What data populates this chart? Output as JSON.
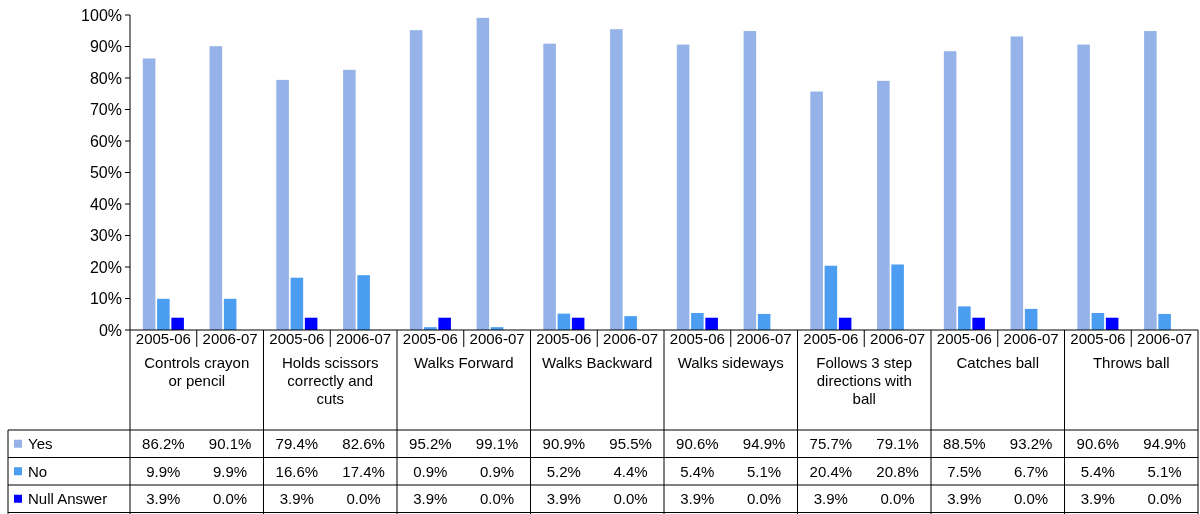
{
  "chart_data": {
    "type": "bar",
    "categories": [
      "2005-06",
      "2006-07",
      "2005-06",
      "2006-07",
      "2005-06",
      "2006-07",
      "2005-06",
      "2006-07",
      "2005-06",
      "2006-07",
      "2005-06",
      "2006-07",
      "2005-06",
      "2006-07",
      "2005-06",
      "2006-07"
    ],
    "annotations": [
      "Controls crayon or pencil",
      "Holds scissors correctly and cuts",
      "Walks Forward",
      "Walks Backward",
      "Walks sideways",
      "Follows 3 step directions with ball",
      "Catches ball",
      "Throws ball"
    ],
    "series": [
      {
        "name": "Yes",
        "color": "#95b3e8",
        "values": [
          86.2,
          90.1,
          79.4,
          82.6,
          95.2,
          99.1,
          90.9,
          95.5,
          90.6,
          94.9,
          75.7,
          79.1,
          88.5,
          93.2,
          90.6,
          94.9
        ],
        "value_labels": [
          "86.2%",
          "90.1%",
          "79.4%",
          "82.6%",
          "95.2%",
          "99.1%",
          "90.9%",
          "95.5%",
          "90.6%",
          "94.9%",
          "75.7%",
          "79.1%",
          "88.5%",
          "93.2%",
          "90.6%",
          "94.9%"
        ]
      },
      {
        "name": "No",
        "color": "#4a9df0",
        "values": [
          9.9,
          9.9,
          16.6,
          17.4,
          0.9,
          0.9,
          5.2,
          4.4,
          5.4,
          5.1,
          20.4,
          20.8,
          7.5,
          6.7,
          5.4,
          5.1
        ],
        "value_labels": [
          "9.9%",
          "9.9%",
          "16.6%",
          "17.4%",
          "0.9%",
          "0.9%",
          "5.2%",
          "4.4%",
          "5.4%",
          "5.1%",
          "20.4%",
          "20.8%",
          "7.5%",
          "6.7%",
          "5.4%",
          "5.1%"
        ]
      },
      {
        "name": "Null Answer",
        "color": "#0000ff",
        "values": [
          3.9,
          0.0,
          3.9,
          0.0,
          3.9,
          0.0,
          3.9,
          0.0,
          3.9,
          0.0,
          3.9,
          0.0,
          3.9,
          0.0,
          3.9,
          0.0
        ],
        "value_labels": [
          "3.9%",
          "0.0%",
          "3.9%",
          "0.0%",
          "3.9%",
          "0.0%",
          "3.9%",
          "0.0%",
          "3.9%",
          "0.0%",
          "3.9%",
          "0.0%",
          "3.9%",
          "0.0%",
          "3.9%",
          "0.0%"
        ]
      }
    ],
    "ylim": [
      0,
      100
    ],
    "yticks": [
      {
        "value": 0,
        "label": "0%"
      },
      {
        "value": 10,
        "label": "10%"
      },
      {
        "value": 20,
        "label": "20%"
      },
      {
        "value": 30,
        "label": "30%"
      },
      {
        "value": 40,
        "label": "40%"
      },
      {
        "value": 50,
        "label": "50%"
      },
      {
        "value": 60,
        "label": "60%"
      },
      {
        "value": 70,
        "label": "70%"
      },
      {
        "value": 80,
        "label": "80%"
      },
      {
        "value": 90,
        "label": "90%"
      },
      {
        "value": 100,
        "label": "100%"
      }
    ],
    "legend": "bottom left"
  }
}
